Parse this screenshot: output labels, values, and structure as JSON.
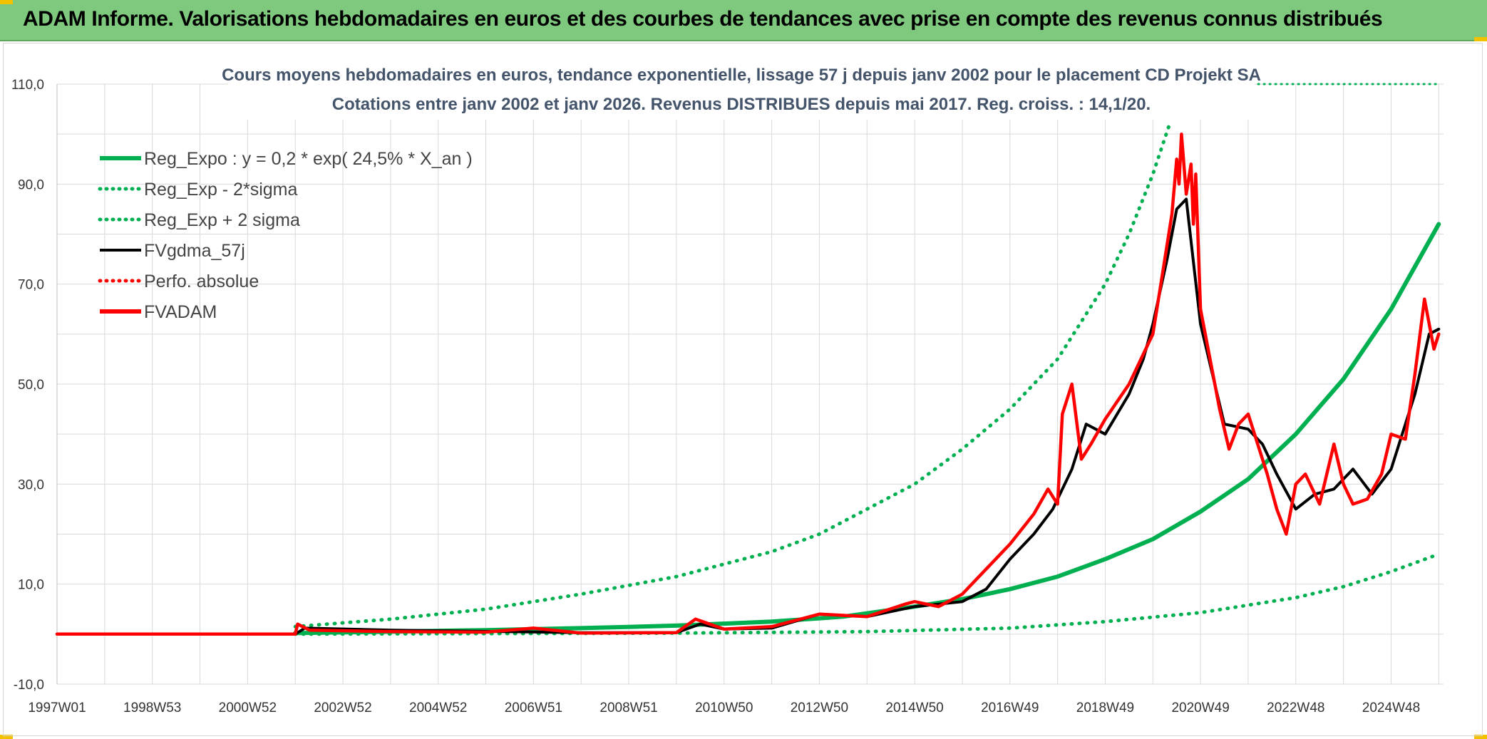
{
  "header": {
    "title": "ADAM Informe. Valorisations hebdomadaires en euros et des courbes de tendances avec prise en compte des revenus connus distribués"
  },
  "colors": {
    "header_bg": "#7fc97f",
    "green": "#00b050",
    "black": "#000000",
    "red": "#ff0000",
    "title": "#44546a"
  },
  "chart_data": {
    "type": "line",
    "title": "Cours moyens hebdomadaires en euros, tendance exponentielle, lissage 57 j depuis janv 2002 pour le placement CD Projekt SA",
    "subtitle": "Cotations entre janv 2002 et janv 2026. Revenus DISTRIBUES depuis mai 2017. Reg. croiss. : 14,1/20.",
    "xlim": [
      1997.0,
      2026.1
    ],
    "ylim": [
      -10,
      110
    ],
    "y_ticks": [
      "110,0",
      "90,0",
      "70,0",
      "50,0",
      "30,0",
      "10,0",
      "-10,0"
    ],
    "y_tick_values": [
      110,
      90,
      70,
      50,
      30,
      10,
      -10
    ],
    "x_ticks": [
      "1997W01",
      "1998W53",
      "2000W52",
      "2002W52",
      "2004W52",
      "2006W51",
      "2008W51",
      "2010W50",
      "2012W50",
      "2014W50",
      "2016W49",
      "2018W49",
      "2020W49",
      "2022W48",
      "2024W48"
    ],
    "x_tick_values": [
      1997.0,
      1999.0,
      2001.0,
      2003.0,
      2005.0,
      2007.0,
      2009.0,
      2011.0,
      2013.0,
      2015.0,
      2017.0,
      2019.0,
      2021.0,
      2023.0,
      2025.0
    ],
    "legend": [
      {
        "label": "Reg_Expo : y = 0,2 * exp( 24,5% *  X_an )",
        "color": "#00b050",
        "style": "solid-thick"
      },
      {
        "label": "Reg_Exp - 2*sigma",
        "color": "#00b050",
        "style": "dotted"
      },
      {
        "label": "Reg_Exp + 2 sigma",
        "color": "#00b050",
        "style": "dotted"
      },
      {
        "label": "FVgdma_57j",
        "color": "#000000",
        "style": "solid"
      },
      {
        "label": "Perfo. absolue",
        "color": "#ff0000",
        "style": "dotted"
      },
      {
        "label": "FVADAM",
        "color": "#ff0000",
        "style": "solid-thick"
      }
    ],
    "series": [
      {
        "name": "Reg_Expo",
        "x": [
          2002.0,
          2004.0,
          2006.0,
          2008.0,
          2010.0,
          2012.0,
          2013.5,
          2015.0,
          2016.0,
          2017.0,
          2018.0,
          2019.0,
          2020.0,
          2021.0,
          2022.0,
          2023.0,
          2024.0,
          2025.0,
          2026.0
        ],
        "values": [
          0.2,
          0.5,
          0.8,
          1.2,
          1.7,
          2.5,
          3.5,
          5.5,
          7.0,
          9.0,
          11.5,
          15.0,
          19.0,
          24.5,
          31.0,
          40.0,
          51.0,
          65.0,
          82.0
        ]
      },
      {
        "name": "Reg_Exp - 2*sigma",
        "x": [
          2002.0,
          2006.0,
          2010.0,
          2014.0,
          2017.0,
          2019.0,
          2021.0,
          2023.0,
          2024.0,
          2025.0,
          2026.0
        ],
        "values": [
          0.0,
          0.1,
          0.2,
          0.5,
          1.2,
          2.5,
          4.3,
          7.3,
          9.5,
          12.5,
          16.0
        ]
      },
      {
        "name": "Reg_Exp + 2 sigma",
        "x": [
          2002.0,
          2004.0,
          2006.0,
          2008.0,
          2010.0,
          2012.0,
          2013.0,
          2014.0,
          2015.0,
          2016.0,
          2017.0,
          2018.0,
          2019.0,
          2019.5,
          2020.0,
          2020.35
        ],
        "values": [
          1.5,
          3.0,
          5.0,
          8.0,
          11.5,
          16.5,
          20.0,
          25.0,
          30.0,
          37.0,
          45.0,
          55.0,
          70.0,
          80.0,
          92.0,
          102.0
        ]
      },
      {
        "name": "FVgdma_57j",
        "x": [
          1997.0,
          2002.0,
          2002.2,
          2004.0,
          2008.0,
          2010.0,
          2010.5,
          2011.0,
          2012.0,
          2013.0,
          2014.0,
          2015.0,
          2015.5,
          2016.0,
          2016.5,
          2017.0,
          2017.5,
          2017.9,
          2018.3,
          2018.6,
          2019.0,
          2019.5,
          2019.8,
          2020.0,
          2020.3,
          2020.5,
          2020.7,
          2021.0,
          2021.5,
          2022.0,
          2022.3,
          2022.6,
          2023.0,
          2023.4,
          2023.8,
          2024.2,
          2024.6,
          2025.0,
          2025.5,
          2025.8,
          2026.0
        ],
        "values": [
          0.0,
          0.0,
          1.2,
          0.8,
          0.3,
          0.3,
          2.0,
          1.0,
          1.2,
          4.0,
          3.5,
          5.5,
          6.0,
          6.5,
          9.0,
          15.0,
          20.0,
          25.0,
          33.0,
          42.0,
          40.0,
          48.0,
          55.0,
          62.0,
          75.0,
          85.0,
          87.0,
          62.0,
          42.0,
          41.0,
          38.0,
          32.0,
          25.0,
          28.0,
          29.0,
          33.0,
          28.0,
          33.0,
          48.0,
          60.0,
          61.0
        ]
      },
      {
        "name": "FVADAM",
        "x": [
          1997.0,
          2002.0,
          2002.05,
          2002.3,
          2004.0,
          2006.0,
          2007.0,
          2008.0,
          2010.0,
          2010.4,
          2011.0,
          2012.0,
          2013.0,
          2014.0,
          2014.8,
          2015.0,
          2015.5,
          2016.0,
          2016.5,
          2017.0,
          2017.5,
          2017.8,
          2018.0,
          2018.1,
          2018.3,
          2018.5,
          2018.7,
          2019.0,
          2019.5,
          2019.8,
          2020.0,
          2020.2,
          2020.4,
          2020.5,
          2020.55,
          2020.6,
          2020.7,
          2020.8,
          2020.85,
          2020.9,
          2021.0,
          2021.2,
          2021.4,
          2021.6,
          2021.8,
          2022.0,
          2022.2,
          2022.4,
          2022.6,
          2022.8,
          2023.0,
          2023.2,
          2023.5,
          2023.8,
          2024.0,
          2024.2,
          2024.5,
          2024.8,
          2025.0,
          2025.3,
          2025.5,
          2025.7,
          2025.9,
          2026.0
        ],
        "values": [
          0.0,
          0.0,
          2.0,
          0.8,
          0.5,
          0.4,
          1.2,
          0.2,
          0.3,
          3.0,
          1.0,
          1.5,
          4.0,
          3.5,
          6.0,
          6.5,
          5.5,
          8.0,
          13.0,
          18.0,
          24.0,
          29.0,
          26.0,
          44.0,
          50.0,
          35.0,
          38.0,
          43.0,
          50.0,
          56.0,
          60.0,
          72.0,
          84.0,
          95.0,
          90.0,
          100.0,
          88.0,
          94.0,
          82.0,
          92.0,
          65.0,
          55.0,
          45.0,
          37.0,
          42.0,
          44.0,
          38.0,
          32.0,
          25.0,
          20.0,
          30.0,
          32.0,
          26.0,
          38.0,
          30.0,
          26.0,
          27.0,
          32.0,
          40.0,
          39.0,
          52.0,
          67.0,
          57.0,
          60.0
        ]
      }
    ]
  }
}
